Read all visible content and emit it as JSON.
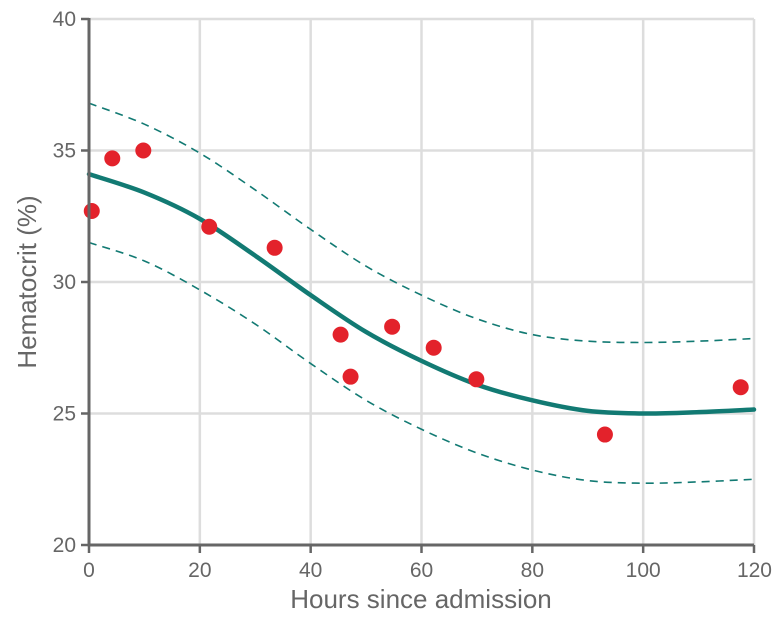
{
  "chart_data": {
    "type": "scatter",
    "title": "",
    "xlabel": "Hours since admission",
    "ylabel": "Hematocrit (%)",
    "xlim": [
      0,
      120
    ],
    "ylim": [
      20,
      40
    ],
    "x_ticks": [
      0,
      20,
      40,
      60,
      80,
      100,
      120
    ],
    "y_ticks": [
      20,
      25,
      30,
      35,
      40
    ],
    "grid": true,
    "legend": "none",
    "colors": {
      "points": "#e3222b",
      "fit": "#127a73",
      "band": "#127a73",
      "grid": "#dddddd",
      "axis": "#666666",
      "text": "#666666"
    },
    "series": [
      {
        "type": "scatter",
        "x": [
          0.5,
          4.2,
          9.8,
          21.7,
          33.5,
          45.4,
          47.2,
          54.7,
          62.2,
          69.9,
          93.1,
          117.6
        ],
        "y": [
          32.7,
          34.7,
          35.0,
          32.1,
          31.3,
          28.0,
          26.4,
          28.3,
          27.5,
          26.3,
          24.2,
          26.0
        ]
      },
      {
        "type": "line",
        "style": "solid",
        "x": [
          0,
          10,
          20,
          30,
          40,
          50,
          60,
          70,
          80,
          90,
          100,
          110,
          120
        ],
        "y": [
          34.1,
          33.4,
          32.4,
          31.0,
          29.5,
          28.1,
          27.0,
          26.1,
          25.5,
          25.1,
          25.0,
          25.05,
          25.15
        ]
      },
      {
        "type": "line",
        "style": "dashed",
        "x": [
          0,
          10,
          20,
          30,
          40,
          50,
          60,
          70,
          80,
          90,
          100,
          110,
          120
        ],
        "y": [
          36.8,
          36.0,
          34.9,
          33.5,
          32.0,
          30.6,
          29.5,
          28.6,
          28.0,
          27.75,
          27.7,
          27.75,
          27.85
        ]
      },
      {
        "type": "line",
        "style": "dashed",
        "x": [
          0,
          10,
          20,
          30,
          40,
          50,
          60,
          70,
          80,
          90,
          100,
          110,
          120
        ],
        "y": [
          31.5,
          30.8,
          29.7,
          28.4,
          26.9,
          25.5,
          24.4,
          23.5,
          22.85,
          22.45,
          22.35,
          22.4,
          22.5
        ]
      }
    ]
  }
}
